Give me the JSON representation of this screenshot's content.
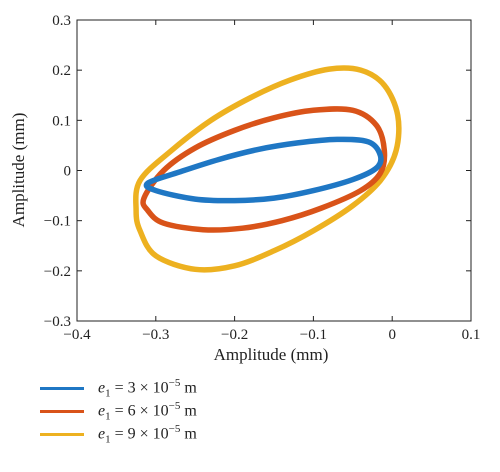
{
  "chart_data": {
    "type": "line",
    "xlabel": "Amplitude (mm)",
    "ylabel": "Amplitude (mm)",
    "xlim": [
      -0.4,
      0.1
    ],
    "ylim": [
      -0.3,
      0.3
    ],
    "xticks": [
      -0.4,
      -0.3,
      -0.2,
      -0.1,
      0,
      0.1
    ],
    "yticks": [
      -0.3,
      -0.2,
      -0.1,
      0,
      0.1,
      0.2,
      0.3
    ],
    "xtick_labels": [
      "−0.4",
      "−0.3",
      "−0.2",
      "−0.1",
      "0",
      "0.1"
    ],
    "ytick_labels": [
      "−0.3",
      "−0.2",
      "−0.1",
      "0",
      "0.1",
      "0.2",
      "0.3"
    ],
    "grid": false,
    "legend_position": "below",
    "series": [
      {
        "name": "e1 = 3 × 10−5 m",
        "legend": {
          "var": "e",
          "sub": "1",
          "mid": " = 3 × 10",
          "sup": "−5",
          "unit": " m"
        },
        "color": "#1f77c4",
        "x": [
          -0.31,
          -0.3,
          -0.25,
          -0.2,
          -0.15,
          -0.1,
          -0.05,
          -0.02,
          -0.015,
          -0.03,
          -0.07,
          -0.12,
          -0.17,
          -0.22,
          -0.27,
          -0.31
        ],
        "y": [
          -0.025,
          -0.04,
          -0.057,
          -0.06,
          -0.055,
          -0.04,
          -0.018,
          0.005,
          0.03,
          0.057,
          0.062,
          0.055,
          0.042,
          0.022,
          -0.003,
          -0.025
        ]
      },
      {
        "name": "e1 = 6 × 10−5 m",
        "legend": {
          "var": "e",
          "sub": "1",
          "mid": " = 6 × 10",
          "sup": "−5",
          "unit": " m"
        },
        "color": "#d95319",
        "x": [
          -0.315,
          -0.31,
          -0.29,
          -0.24,
          -0.19,
          -0.14,
          -0.09,
          -0.04,
          -0.015,
          -0.01,
          -0.02,
          -0.05,
          -0.1,
          -0.15,
          -0.2,
          -0.25,
          -0.29,
          -0.315
        ],
        "y": [
          -0.055,
          -0.08,
          -0.105,
          -0.118,
          -0.115,
          -0.1,
          -0.075,
          -0.04,
          -0.005,
          0.04,
          0.09,
          0.12,
          0.12,
          0.105,
          0.08,
          0.045,
          0.0,
          -0.055
        ]
      },
      {
        "name": "e1 = 9 × 10−5 m",
        "legend": {
          "var": "e",
          "sub": "1",
          "mid": " = 9 × 10",
          "sup": "−5",
          "unit": " m"
        },
        "color": "#edb120",
        "x": [
          -0.325,
          -0.32,
          -0.3,
          -0.25,
          -0.2,
          -0.15,
          -0.1,
          -0.05,
          -0.015,
          0.005,
          0.007,
          -0.01,
          -0.04,
          -0.08,
          -0.13,
          -0.18,
          -0.23,
          -0.28,
          -0.32,
          -0.325
        ],
        "y": [
          -0.08,
          -0.12,
          -0.17,
          -0.197,
          -0.19,
          -0.16,
          -0.12,
          -0.07,
          -0.02,
          0.04,
          0.11,
          0.17,
          0.2,
          0.202,
          0.18,
          0.145,
          0.1,
          0.04,
          -0.02,
          -0.08
        ]
      }
    ]
  }
}
